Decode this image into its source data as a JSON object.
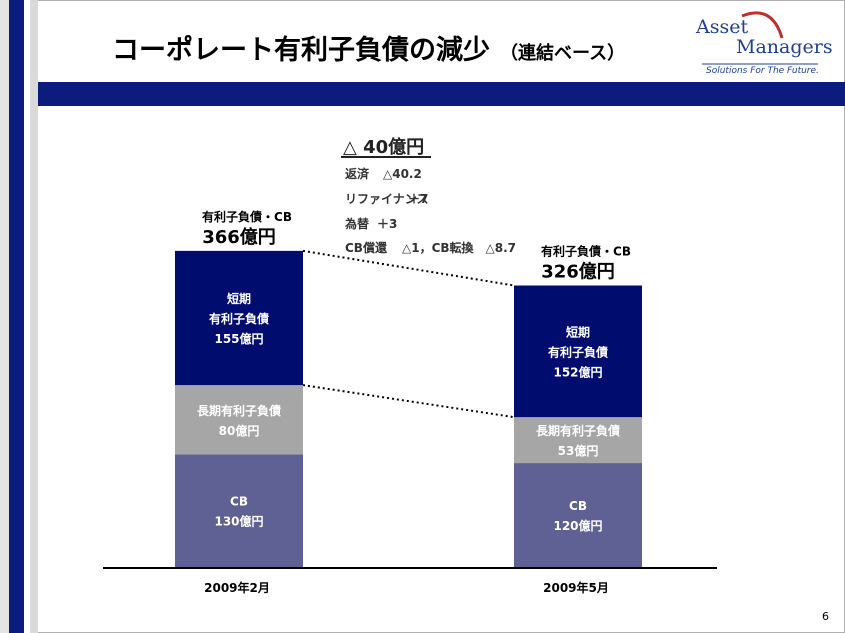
{
  "slide": {
    "title": "コーポレート有利子負債の減少",
    "subtitle": "（連結ベース）",
    "page_number": "6",
    "logo": {
      "line1": "Asset",
      "line2": "Managers",
      "tagline": "Solutions For The Future."
    }
  },
  "colors": {
    "navy": "#0b1b7e",
    "short_term": "#000d6e",
    "long_term": "#a6a6a6",
    "cb": "#5f6194"
  },
  "chart_data": {
    "type": "bar",
    "stacked": true,
    "categories": [
      "2009年2月",
      "2009年5月"
    ],
    "series": [
      {
        "name": "CB",
        "label_lines": [
          "CB"
        ],
        "values": [
          130,
          120
        ],
        "value_labels": [
          "130億円",
          "120億円"
        ]
      },
      {
        "name": "長期有利子負債",
        "label_lines": [
          "長期有利子負債"
        ],
        "values": [
          80,
          53
        ],
        "value_labels": [
          "80億円",
          "53億円"
        ]
      },
      {
        "name": "短期有利子負債",
        "label_lines": [
          "短期",
          "有利子負債"
        ],
        "values": [
          155,
          152
        ],
        "value_labels": [
          "155億円",
          "152億円"
        ]
      }
    ],
    "totals": [
      {
        "caption": "有利子負債・CB",
        "value_label": "366億円"
      },
      {
        "caption": "有利子負債・CB",
        "value_label": "326億円"
      }
    ],
    "annotation": {
      "headline": "△ 40億円",
      "items": [
        {
          "label": "返済",
          "value": "△40.2"
        },
        {
          "label": "リファイナンス",
          "value": "＋7"
        },
        {
          "label": "為替",
          "value": "＋3"
        },
        {
          "label": "CB償還",
          "value": "△1，CB転換　△8.7"
        }
      ]
    },
    "ylim": [
      0,
      366
    ]
  }
}
